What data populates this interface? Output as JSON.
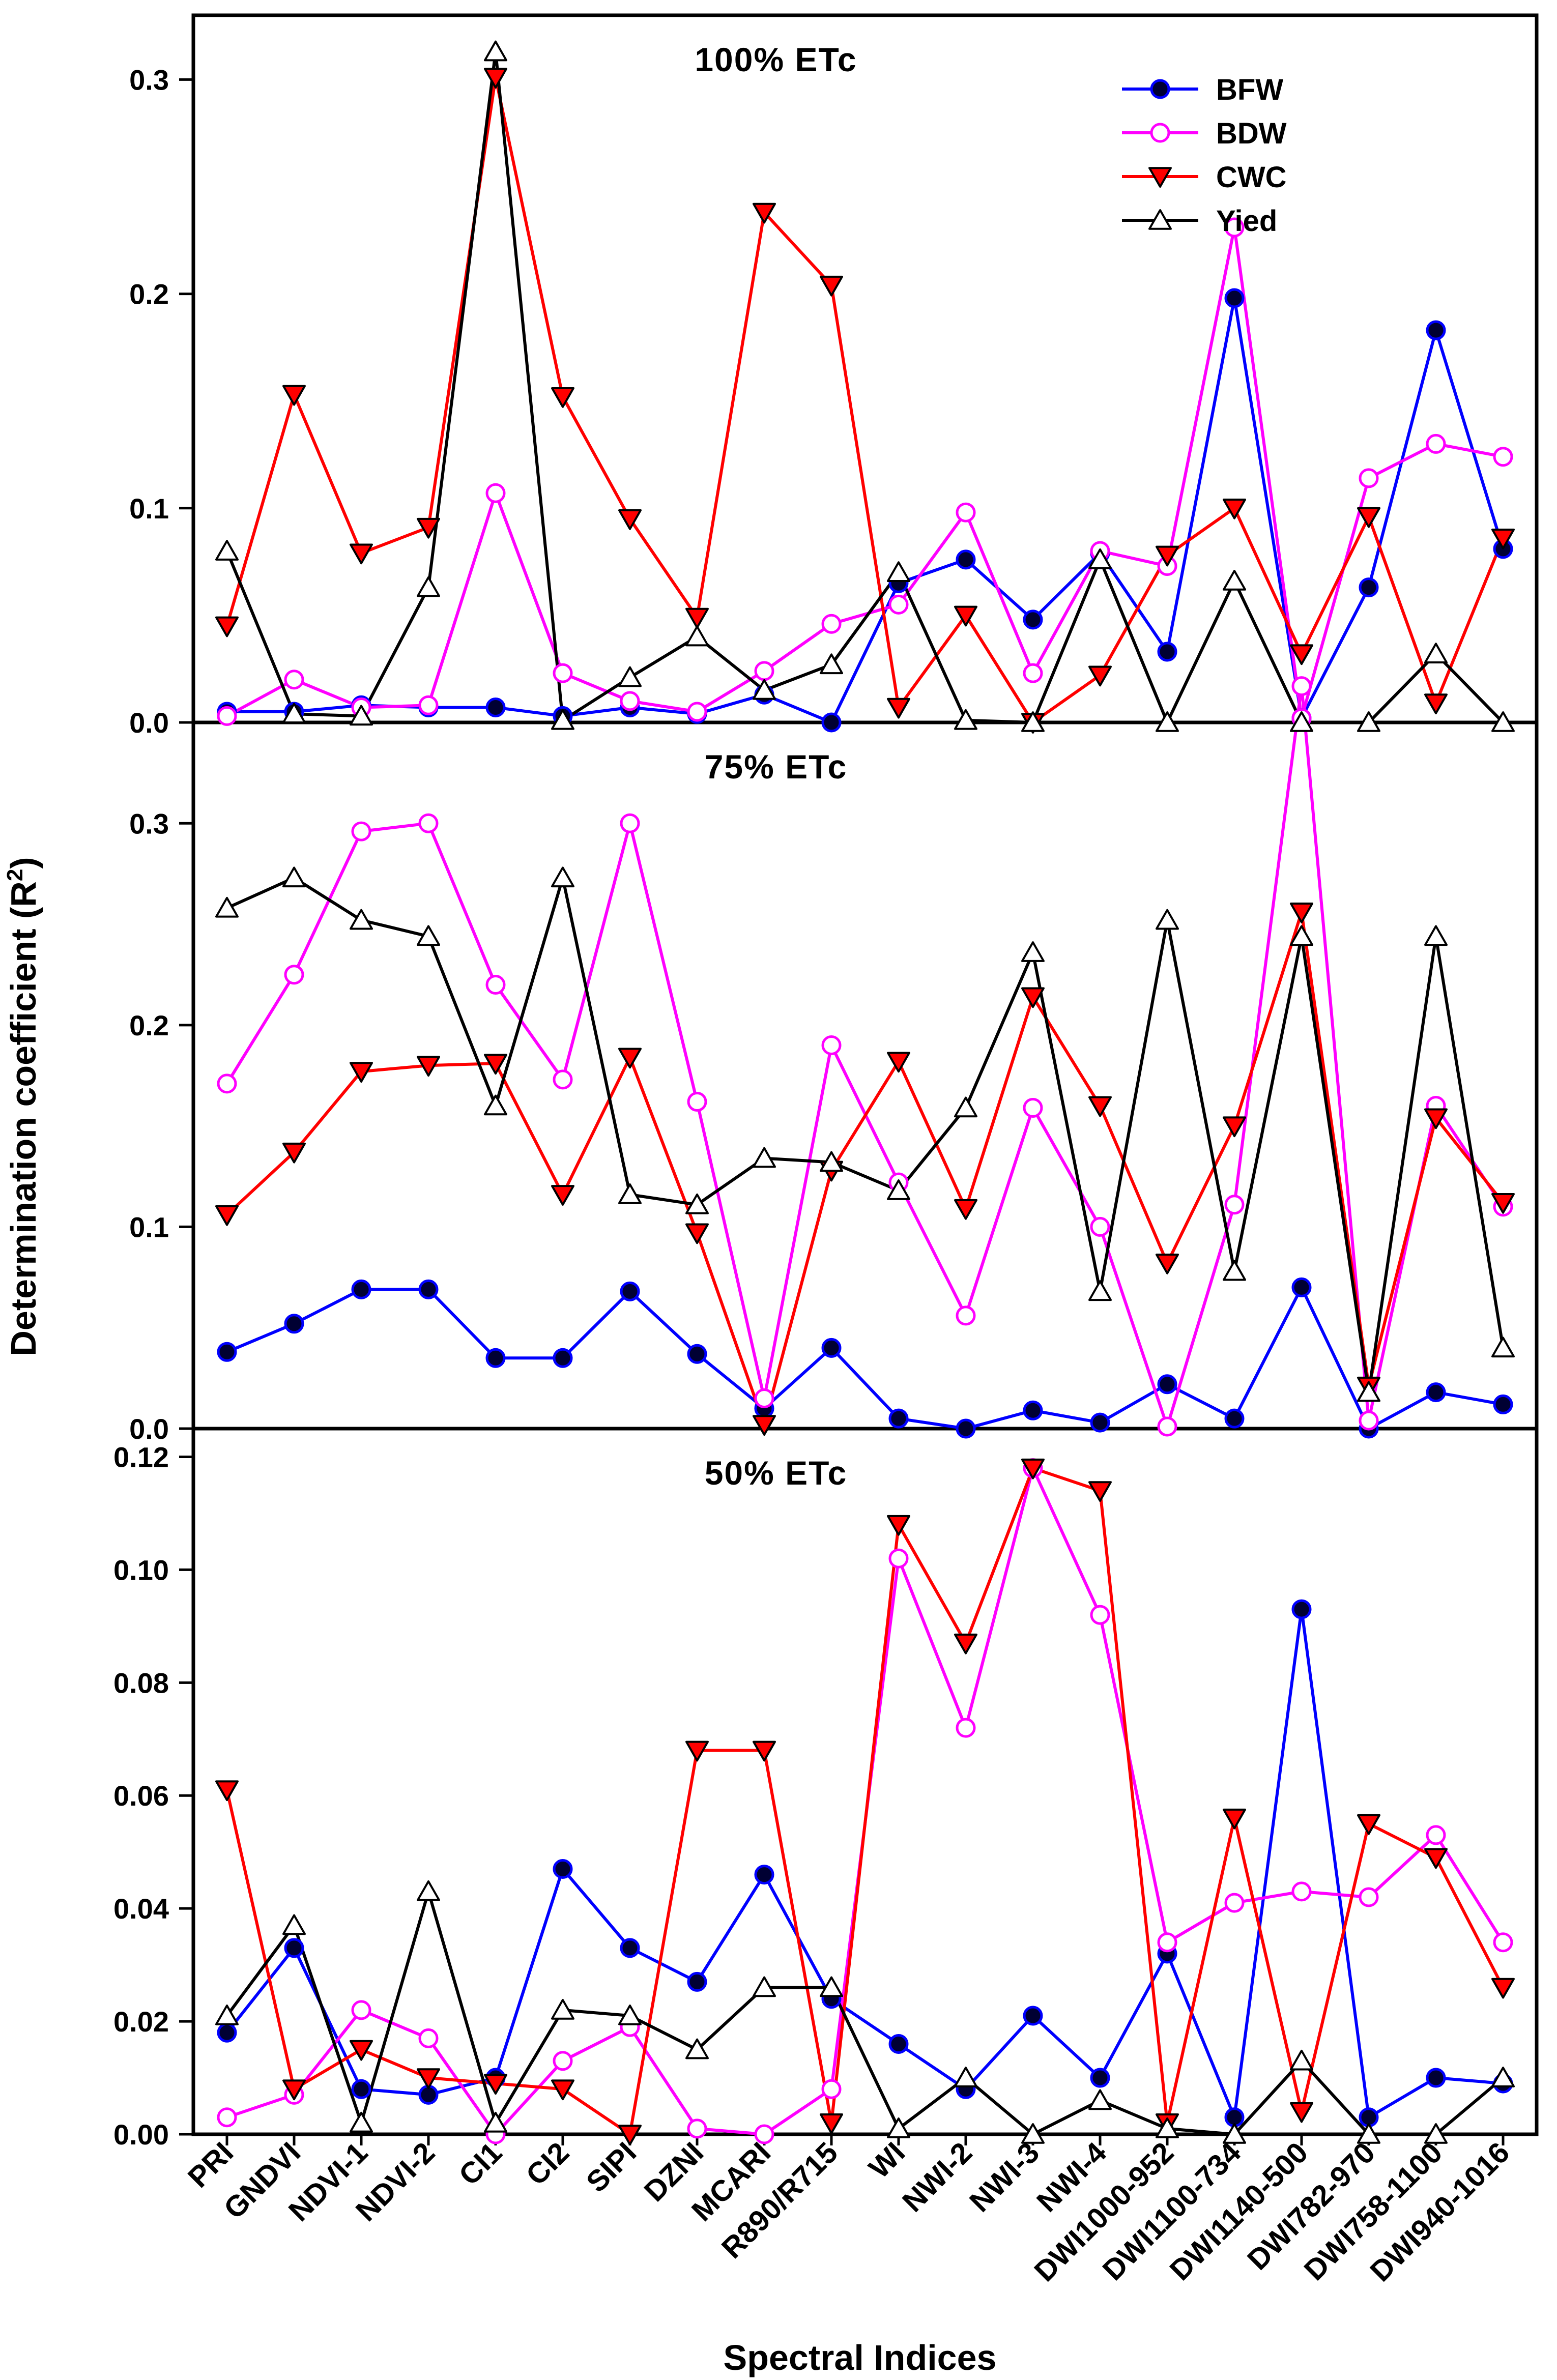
{
  "chart_data": {
    "type": "line",
    "categories": [
      "PRI",
      "GNDVI",
      "NDVI-1",
      "NDVI-2",
      "CI1",
      "CI2",
      "SIPI",
      "DZNI",
      "MCARI",
      "R890/R715",
      "WI",
      "NWI-2",
      "NWI-3",
      "NWI-4",
      "DWI1000-952",
      "DWI1100-734",
      "DWI1140-500",
      "DWI782-970",
      "DWI758-1100",
      "DWI940-1016"
    ],
    "xlabel": "Spectral Indices",
    "ylabel": "Determination coefficient (R",
    "ylabel_sup": "2",
    "ylabel_close": ")",
    "legend": {
      "position": "top-right",
      "entries": [
        {
          "name": "BFW",
          "color": "#0000ff",
          "marker": "filled-circle"
        },
        {
          "name": "BDW",
          "color": "#ff00ff",
          "marker": "open-circle"
        },
        {
          "name": "CWC",
          "color": "#ff0000",
          "marker": "triangle-down"
        },
        {
          "name": "Yied",
          "color": "#000000",
          "marker": "open-triangle-up"
        }
      ]
    },
    "panels": [
      {
        "title": "100% ETc",
        "ylim": [
          0,
          0.33
        ],
        "yticks": [
          "0.0",
          "0.1",
          "0.2",
          "0.3"
        ],
        "ytick_values": [
          0,
          0.1,
          0.2,
          0.3
        ],
        "series": [
          {
            "name": "BFW",
            "values": [
              0.005,
              0.005,
              0.008,
              0.007,
              0.007,
              0.003,
              0.007,
              0.004,
              0.013,
              0.0,
              0.065,
              0.076,
              0.048,
              0.079,
              0.033,
              0.198,
              0.002,
              0.063,
              0.183,
              0.081
            ]
          },
          {
            "name": "BDW",
            "values": [
              0.003,
              0.02,
              0.007,
              0.008,
              0.107,
              0.023,
              0.01,
              0.005,
              0.024,
              0.046,
              0.055,
              0.098,
              0.023,
              0.08,
              0.073,
              0.231,
              0.002,
              0.114,
              0.13,
              0.124
            ]
          },
          {
            "name": "CWC",
            "values": [
              0.045,
              0.153,
              0.079,
              0.091,
              0.301,
              0.152,
              0.095,
              0.049,
              0.238,
              0.204,
              0.007,
              0.05,
              0.0,
              0.022,
              0.078,
              0.1,
              0.032,
              0.096,
              0.009,
              0.086
            ]
          },
          {
            "name": "Yied",
            "values": [
              0.08,
              0.004,
              0.003,
              0.063,
              0.313,
              0.001,
              0.021,
              0.04,
              0.015,
              0.027,
              0.07,
              0.001,
              0.0,
              0.076,
              0.0,
              0.066,
              0.0,
              0.0,
              0.032,
              0.0
            ]
          }
        ]
      },
      {
        "title": "75% ETc",
        "ylim": [
          0,
          0.35
        ],
        "yticks": [
          "0.0",
          "0.1",
          "0.2",
          "0.3"
        ],
        "ytick_values": [
          0,
          0.1,
          0.2,
          0.3
        ],
        "series": [
          {
            "name": "BFW",
            "values": [
              0.038,
              0.052,
              0.069,
              0.069,
              0.035,
              0.035,
              0.068,
              0.037,
              0.01,
              0.04,
              0.005,
              0.0,
              0.009,
              0.003,
              0.022,
              0.005,
              0.07,
              0.0,
              0.018,
              0.012
            ]
          },
          {
            "name": "BDW",
            "values": [
              0.171,
              0.225,
              0.296,
              0.3,
              0.22,
              0.173,
              0.3,
              0.162,
              0.015,
              0.19,
              0.122,
              0.056,
              0.159,
              0.1,
              0.001,
              0.111,
              0.368,
              0.004,
              0.16,
              0.11
            ]
          },
          {
            "name": "CWC",
            "values": [
              0.106,
              0.137,
              0.177,
              0.18,
              0.181,
              0.116,
              0.184,
              0.097,
              0.002,
              0.128,
              0.182,
              0.109,
              0.214,
              0.16,
              0.082,
              0.15,
              0.256,
              0.021,
              0.154,
              0.112
            ]
          },
          {
            "name": "Yied",
            "values": [
              0.258,
              0.273,
              0.252,
              0.244,
              0.16,
              0.273,
              0.116,
              0.111,
              0.134,
              0.132,
              0.118,
              0.159,
              0.236,
              0.068,
              0.252,
              0.078,
              0.244,
              0.018,
              0.244,
              0.04
            ]
          }
        ]
      },
      {
        "title": "50% ETc",
        "ylim": [
          0,
          0.125
        ],
        "yticks": [
          "0.00",
          "0.02",
          "0.04",
          "0.06",
          "0.08",
          "0.10",
          "0.12"
        ],
        "ytick_values": [
          0,
          0.02,
          0.04,
          0.06,
          0.08,
          0.1,
          0.12
        ],
        "series": [
          {
            "name": "BFW",
            "values": [
              0.018,
              0.033,
              0.008,
              0.007,
              0.01,
              0.047,
              0.033,
              0.027,
              0.046,
              0.024,
              0.016,
              0.008,
              0.021,
              0.01,
              0.032,
              0.003,
              0.093,
              0.003,
              0.01,
              0.009
            ]
          },
          {
            "name": "BDW",
            "values": [
              0.003,
              0.007,
              0.022,
              0.017,
              0.0,
              0.013,
              0.019,
              0.001,
              0.0,
              0.008,
              0.102,
              0.072,
              0.118,
              0.092,
              0.034,
              0.041,
              0.043,
              0.042,
              0.053,
              0.034
            ]
          },
          {
            "name": "CWC",
            "values": [
              0.061,
              0.008,
              0.015,
              0.01,
              0.009,
              0.008,
              0.0,
              0.068,
              0.068,
              0.002,
              0.108,
              0.087,
              0.118,
              0.114,
              0.002,
              0.056,
              0.004,
              0.055,
              0.049,
              0.026
            ]
          },
          {
            "name": "Yied",
            "values": [
              0.021,
              0.037,
              0.002,
              0.043,
              0.002,
              0.022,
              0.021,
              0.015,
              0.026,
              0.026,
              0.001,
              0.01,
              0.0,
              0.006,
              0.001,
              0.0,
              0.013,
              0.0,
              0.0,
              0.01
            ]
          }
        ]
      }
    ]
  }
}
